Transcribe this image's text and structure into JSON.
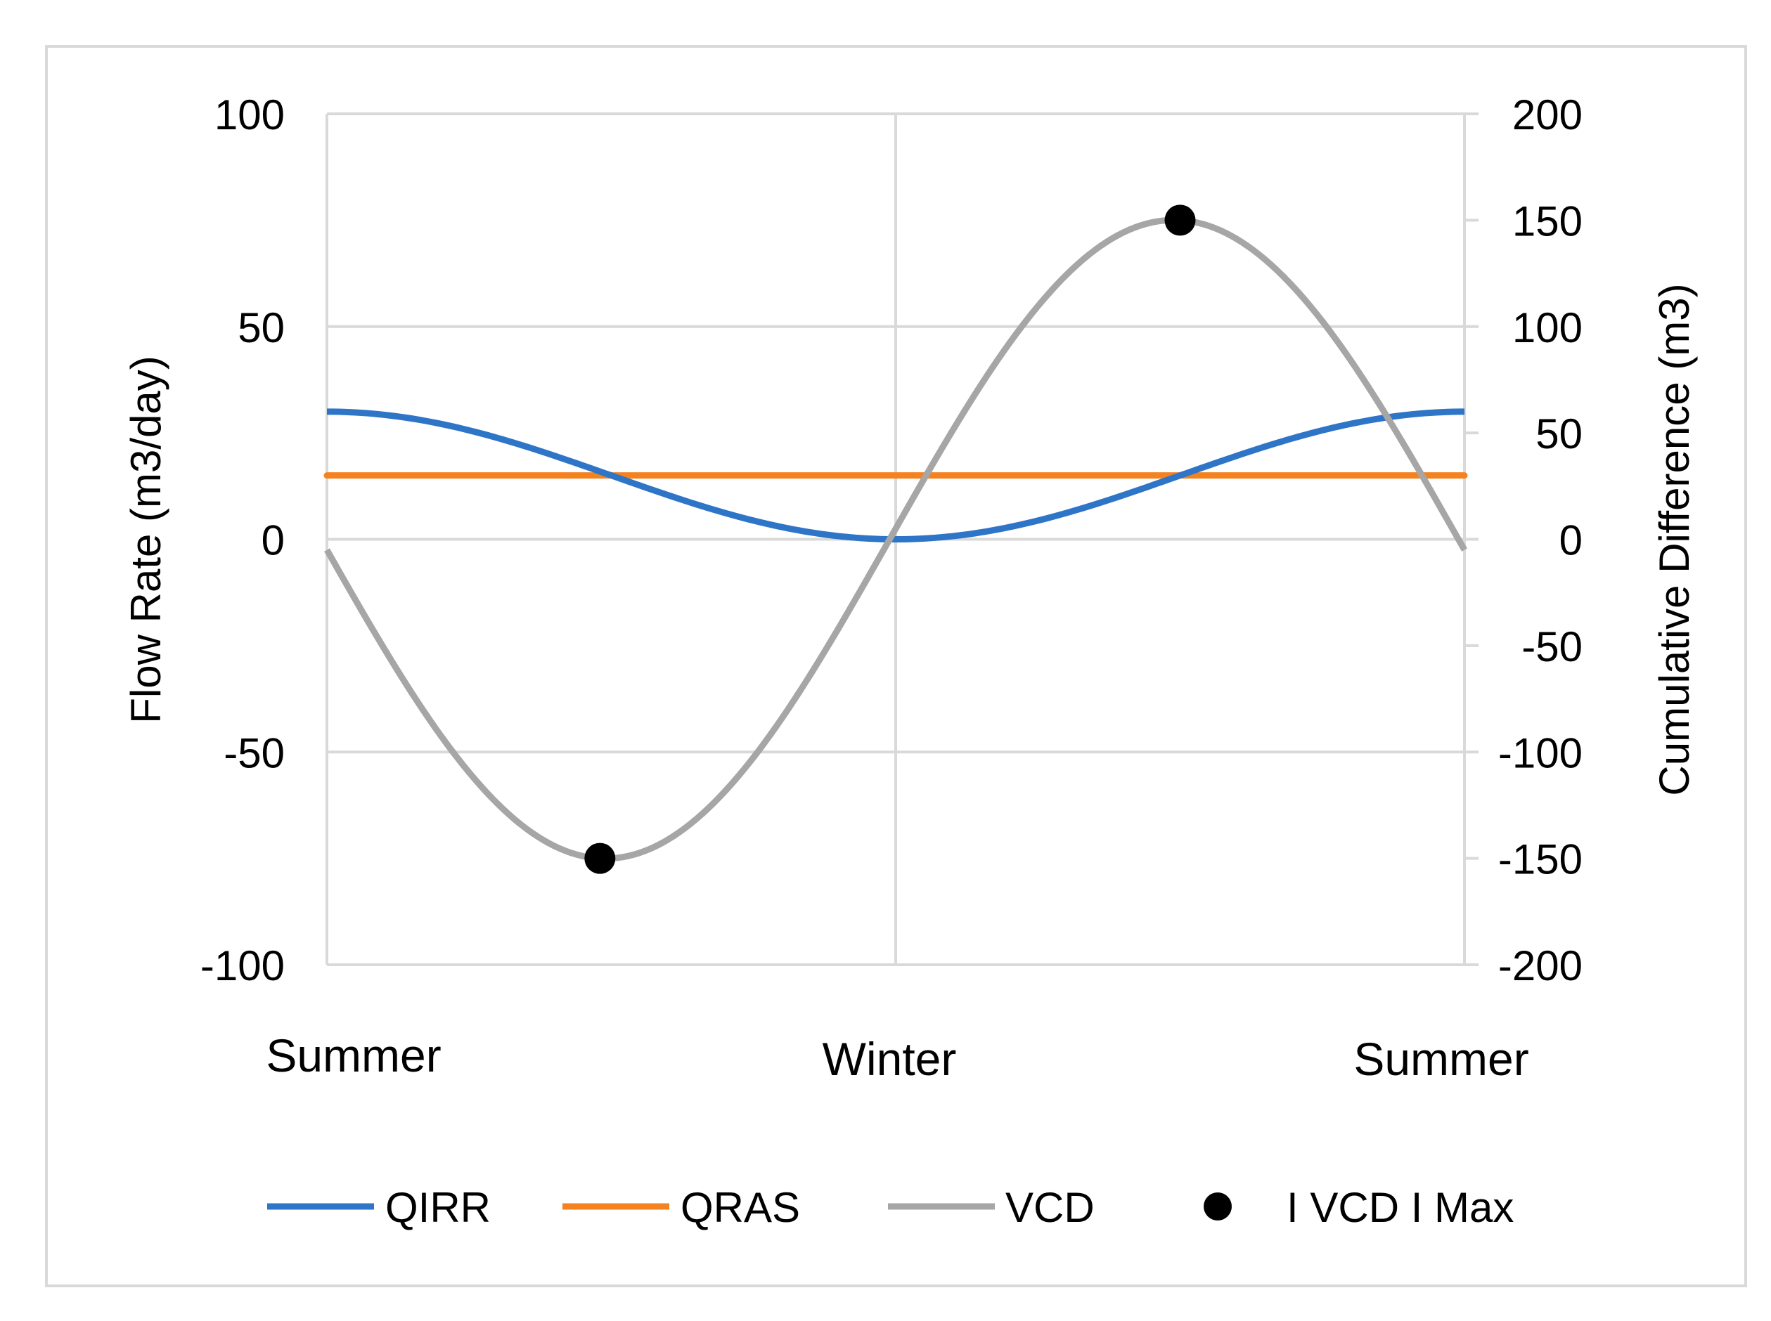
{
  "chart_data": {
    "type": "line",
    "title": "",
    "x_categories": [
      "Summer",
      "Winter",
      "Summer"
    ],
    "left_axis": {
      "label": "Flow Rate (m3/day)",
      "min": -100,
      "max": 100,
      "step": 50,
      "ticks": [
        "100",
        "50",
        "0",
        "-50",
        "-100"
      ]
    },
    "right_axis": {
      "label": "Cumulative Difference (m3)",
      "min": -200,
      "max": 200,
      "step": 50,
      "ticks": [
        "200",
        "150",
        "100",
        "50",
        "0",
        "-50",
        "-100",
        "-150",
        "-200"
      ]
    },
    "x_domain": [
      0,
      1
    ],
    "series": [
      {
        "name": "QIRR",
        "axis": "left",
        "color": "#2E75C8",
        "description": "15 + 15*cos(2*pi*t)",
        "x": [
          0,
          0.125,
          0.25,
          0.375,
          0.5,
          0.625,
          0.75,
          0.875,
          1
        ],
        "values": [
          30,
          25.6,
          15,
          4.4,
          0,
          4.4,
          15,
          25.6,
          30
        ]
      },
      {
        "name": "QRAS",
        "axis": "left",
        "color": "#F58220",
        "x": [
          0,
          1
        ],
        "values": [
          15,
          15
        ]
      },
      {
        "name": "VCD",
        "axis": "right",
        "color": "#A6A6A6",
        "description": "-150*sin(2*pi*t) (approx.)",
        "x": [
          0,
          0.125,
          0.25,
          0.375,
          0.5,
          0.625,
          0.75,
          0.875,
          1
        ],
        "values": [
          -5,
          -106,
          -150,
          -106,
          0,
          106,
          150,
          106,
          -5
        ]
      },
      {
        "name": "I VCD I Max",
        "axis": "right",
        "color": "#000000",
        "type": "scatter",
        "x": [
          0.24,
          0.75
        ],
        "values": [
          -150,
          150
        ]
      }
    ],
    "grid": true,
    "legend_position": "bottom"
  }
}
